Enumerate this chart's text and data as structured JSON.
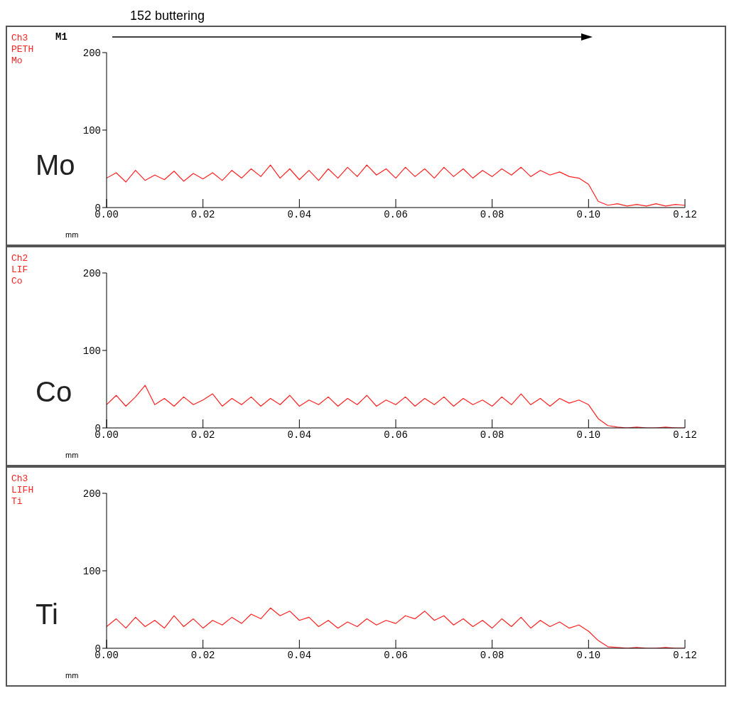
{
  "chart_data": [
    {
      "type": "line",
      "title": "152 buttering",
      "annotations": [
        "Ch3",
        "PETH",
        "Mo",
        "M1"
      ],
      "xlabel": "mm",
      "x": [
        0,
        0.002,
        0.004,
        0.006,
        0.008,
        0.01,
        0.012,
        0.014,
        0.016,
        0.018,
        0.02,
        0.022,
        0.024,
        0.026,
        0.028,
        0.03,
        0.032,
        0.034,
        0.036,
        0.038,
        0.04,
        0.042,
        0.044,
        0.046,
        0.048,
        0.05,
        0.052,
        0.054,
        0.056,
        0.058,
        0.06,
        0.062,
        0.064,
        0.066,
        0.068,
        0.07,
        0.072,
        0.074,
        0.076,
        0.078,
        0.08,
        0.082,
        0.084,
        0.086,
        0.088,
        0.09,
        0.092,
        0.094,
        0.096,
        0.098,
        0.1,
        0.102,
        0.104,
        0.106,
        0.108,
        0.11,
        0.112,
        0.114,
        0.116,
        0.118,
        0.12
      ],
      "series": [
        {
          "name": "Mo",
          "color": "#ff2020",
          "values": [
            38,
            45,
            33,
            48,
            35,
            42,
            36,
            47,
            34,
            44,
            37,
            45,
            35,
            48,
            38,
            50,
            40,
            55,
            38,
            50,
            36,
            48,
            35,
            50,
            38,
            52,
            40,
            55,
            42,
            50,
            38,
            52,
            40,
            50,
            38,
            52,
            40,
            50,
            38,
            48,
            40,
            50,
            42,
            52,
            40,
            48,
            42,
            46,
            40,
            38,
            30,
            8,
            3,
            5,
            2,
            4,
            2,
            5,
            2,
            4,
            3
          ]
        }
      ],
      "xlim": [
        0,
        0.12
      ],
      "xticks": [
        {
          "value": 0,
          "label": "0.00"
        },
        {
          "value": 0.02,
          "label": "0.02"
        },
        {
          "value": 0.04,
          "label": "0.04"
        },
        {
          "value": 0.06,
          "label": "0.06"
        },
        {
          "value": 0.08,
          "label": "0.08"
        },
        {
          "value": 0.1,
          "label": "0.10"
        },
        {
          "value": 0.12,
          "label": "0.12"
        }
      ],
      "ylim": [
        0,
        200
      ],
      "yticks": [
        0,
        100,
        200
      ],
      "marker": "none"
    },
    {
      "type": "line",
      "annotations": [
        "Ch2",
        "LIF",
        "Co"
      ],
      "xlabel": "mm",
      "x": [
        0,
        0.002,
        0.004,
        0.006,
        0.008,
        0.01,
        0.012,
        0.014,
        0.016,
        0.018,
        0.02,
        0.022,
        0.024,
        0.026,
        0.028,
        0.03,
        0.032,
        0.034,
        0.036,
        0.038,
        0.04,
        0.042,
        0.044,
        0.046,
        0.048,
        0.05,
        0.052,
        0.054,
        0.056,
        0.058,
        0.06,
        0.062,
        0.064,
        0.066,
        0.068,
        0.07,
        0.072,
        0.074,
        0.076,
        0.078,
        0.08,
        0.082,
        0.084,
        0.086,
        0.088,
        0.09,
        0.092,
        0.094,
        0.096,
        0.098,
        0.1,
        0.102,
        0.104,
        0.106,
        0.108,
        0.11,
        0.112,
        0.114,
        0.116,
        0.118,
        0.12
      ],
      "series": [
        {
          "name": "Co",
          "color": "#ff2020",
          "values": [
            30,
            42,
            28,
            40,
            55,
            30,
            38,
            28,
            40,
            30,
            36,
            44,
            28,
            38,
            30,
            40,
            28,
            38,
            30,
            42,
            28,
            36,
            30,
            40,
            28,
            38,
            30,
            42,
            28,
            36,
            30,
            40,
            28,
            38,
            30,
            40,
            28,
            38,
            30,
            36,
            28,
            40,
            30,
            44,
            30,
            38,
            28,
            38,
            32,
            36,
            30,
            12,
            3,
            1,
            0,
            1,
            0,
            0,
            1,
            0,
            0
          ]
        }
      ],
      "xlim": [
        0,
        0.12
      ],
      "xticks": [
        {
          "value": 0,
          "label": "0.00"
        },
        {
          "value": 0.02,
          "label": "0.02"
        },
        {
          "value": 0.04,
          "label": "0.04"
        },
        {
          "value": 0.06,
          "label": "0.06"
        },
        {
          "value": 0.08,
          "label": "0.08"
        },
        {
          "value": 0.1,
          "label": "0.10"
        },
        {
          "value": 0.12,
          "label": "0.12"
        }
      ],
      "ylim": [
        0,
        200
      ],
      "yticks": [
        0,
        100,
        200
      ],
      "marker": "none"
    },
    {
      "type": "line",
      "annotations": [
        "Ch3",
        "LIFH",
        "Ti"
      ],
      "xlabel": "mm",
      "x": [
        0,
        0.002,
        0.004,
        0.006,
        0.008,
        0.01,
        0.012,
        0.014,
        0.016,
        0.018,
        0.02,
        0.022,
        0.024,
        0.026,
        0.028,
        0.03,
        0.032,
        0.034,
        0.036,
        0.038,
        0.04,
        0.042,
        0.044,
        0.046,
        0.048,
        0.05,
        0.052,
        0.054,
        0.056,
        0.058,
        0.06,
        0.062,
        0.064,
        0.066,
        0.068,
        0.07,
        0.072,
        0.074,
        0.076,
        0.078,
        0.08,
        0.082,
        0.084,
        0.086,
        0.088,
        0.09,
        0.092,
        0.094,
        0.096,
        0.098,
        0.1,
        0.102,
        0.104,
        0.106,
        0.108,
        0.11,
        0.112,
        0.114,
        0.116,
        0.118,
        0.12
      ],
      "series": [
        {
          "name": "Ti",
          "color": "#ff2020",
          "values": [
            28,
            38,
            26,
            40,
            28,
            36,
            26,
            42,
            28,
            38,
            26,
            36,
            30,
            40,
            32,
            44,
            38,
            52,
            42,
            48,
            36,
            40,
            28,
            36,
            26,
            34,
            28,
            38,
            30,
            36,
            32,
            42,
            38,
            48,
            36,
            42,
            30,
            38,
            28,
            36,
            26,
            38,
            28,
            40,
            26,
            36,
            28,
            34,
            26,
            30,
            22,
            10,
            2,
            1,
            0,
            1,
            0,
            0,
            1,
            0,
            0
          ]
        }
      ],
      "xlim": [
        0,
        0.12
      ],
      "xticks": [
        {
          "value": 0,
          "label": "0.00"
        },
        {
          "value": 0.02,
          "label": "0.02"
        },
        {
          "value": 0.04,
          "label": "0.04"
        },
        {
          "value": 0.06,
          "label": "0.06"
        },
        {
          "value": 0.08,
          "label": "0.08"
        },
        {
          "value": 0.1,
          "label": "0.10"
        },
        {
          "value": 0.12,
          "label": "0.12"
        }
      ],
      "ylim": [
        0,
        200
      ],
      "yticks": [
        0,
        100,
        200
      ],
      "marker": "none"
    }
  ]
}
